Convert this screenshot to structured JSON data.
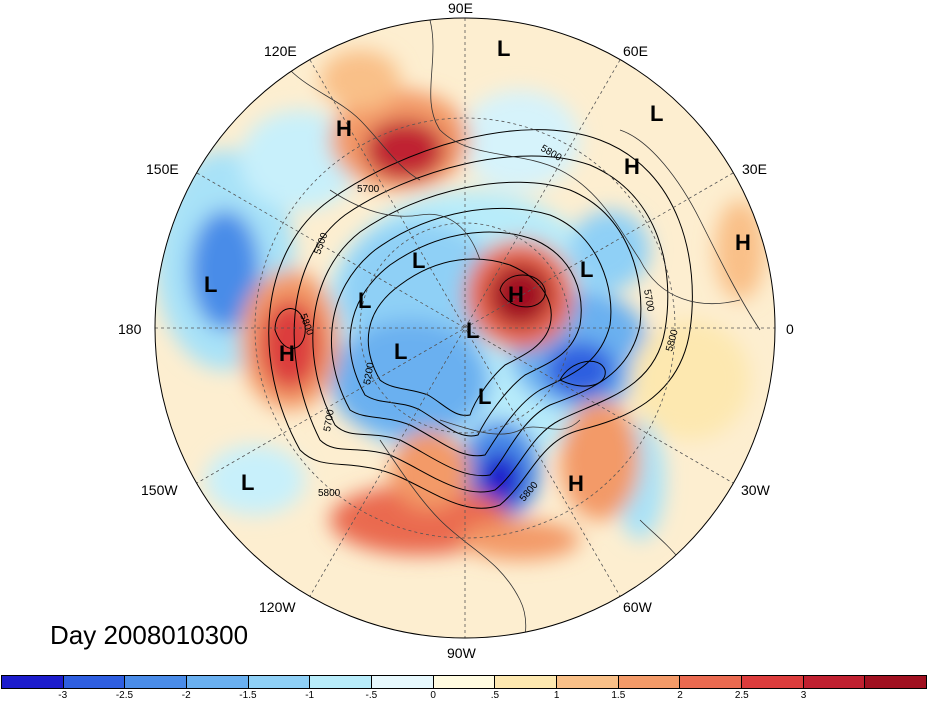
{
  "map": {
    "day_label": "Day 2008010300",
    "longitude_labels": [
      "90E",
      "60E",
      "30E",
      "0",
      "30W",
      "60W",
      "90W",
      "120W",
      "150W",
      "180",
      "150E",
      "120E"
    ],
    "contour_labels": [
      "5800",
      "5700",
      "5500",
      "5800",
      "5200",
      "5700",
      "5800",
      "5800",
      "5800",
      "5700"
    ],
    "highs_lows": [
      {
        "letter": "L",
        "region": "north-center"
      },
      {
        "letter": "L",
        "region": "east-upper"
      },
      {
        "letter": "H",
        "region": "europe"
      },
      {
        "letter": "H",
        "region": "east-siberia"
      },
      {
        "letter": "H",
        "region": "africa-north"
      },
      {
        "letter": "L",
        "region": "scandinavia"
      },
      {
        "letter": "H",
        "region": "greenland"
      },
      {
        "letter": "L",
        "region": "arctic-1"
      },
      {
        "letter": "L",
        "region": "arctic-2"
      },
      {
        "letter": "L",
        "region": "arctic-3"
      },
      {
        "letter": "L",
        "region": "canada"
      },
      {
        "letter": "L",
        "region": "pacific-west"
      },
      {
        "letter": "H",
        "region": "pacific-dateline"
      },
      {
        "letter": "L",
        "region": "pacific-east"
      },
      {
        "letter": "H",
        "region": "atlantic"
      },
      {
        "letter": "L",
        "region": "north-pole"
      }
    ]
  },
  "colorbar": {
    "colors": [
      "#1c1ccc",
      "#2e5ee0",
      "#4a8ce8",
      "#6ab0f0",
      "#8fd0f6",
      "#b8ecfa",
      "#e6f8fd",
      "#fffbe0",
      "#fde8b0",
      "#f9c088",
      "#f39a68",
      "#ea6a50",
      "#dc3c3c",
      "#c02030",
      "#a01020"
    ],
    "tick_labels": [
      "-3",
      "-2.5",
      "-2",
      "-1.5",
      "-1",
      "-.5",
      "0",
      ".5",
      "1",
      "1.5",
      "2",
      "2.5",
      "3"
    ]
  }
}
